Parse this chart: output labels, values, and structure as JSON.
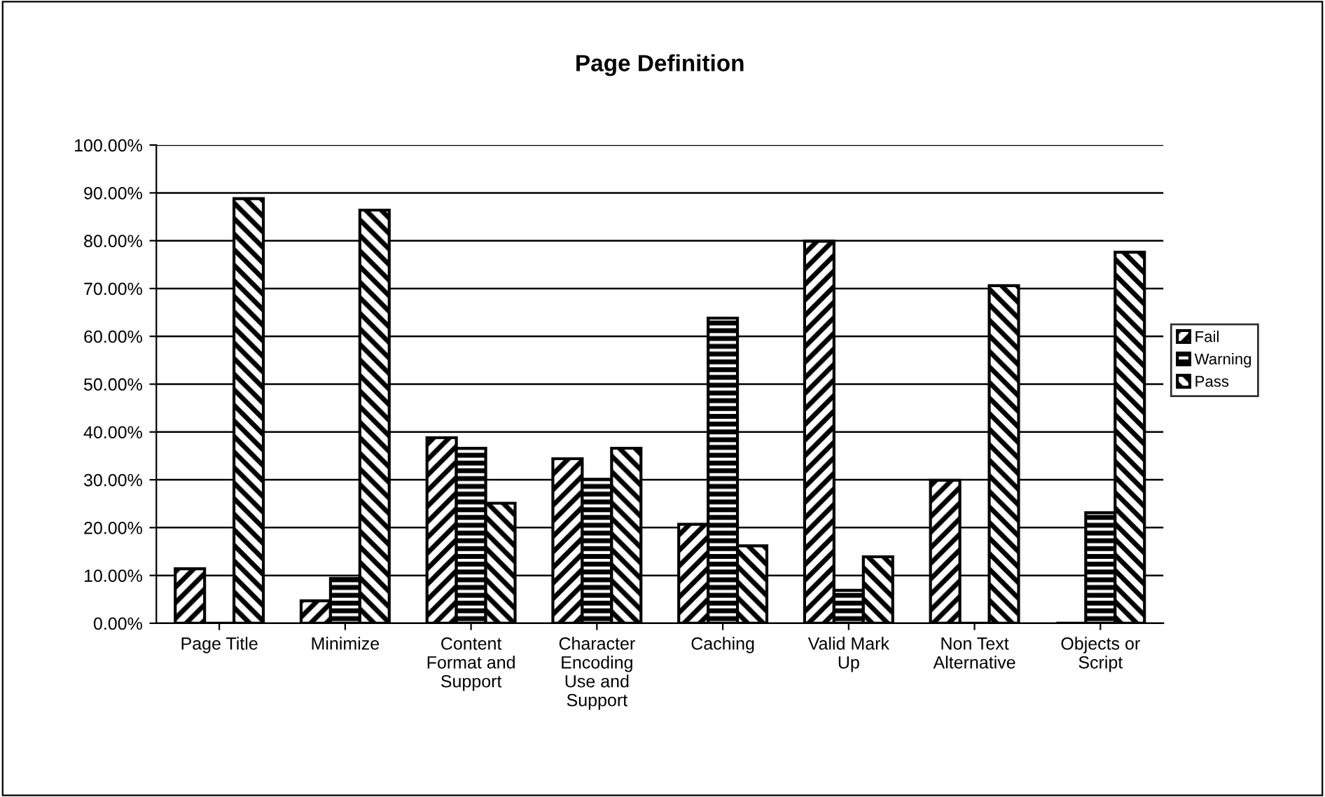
{
  "chart_data": {
    "type": "bar",
    "title": "Page Definition",
    "categories": [
      "Page Title",
      "Minimize",
      "Content\nFormat and\nSupport",
      "Character\nEncoding\nUse and\nSupport",
      "Caching",
      "Valid Mark\nUp",
      "Non Text\nAlternative",
      "Objects or\nScript"
    ],
    "series": [
      {
        "name": "Fail",
        "color": "#000000",
        "values": [
          11.4,
          4.7,
          38.8,
          34.4,
          20.7,
          79.9,
          29.9,
          0
        ]
      },
      {
        "name": "Warning",
        "color": "#000000",
        "values": [
          0,
          9.4,
          36.6,
          30.1,
          63.8,
          6.9,
          0,
          23.1
        ]
      },
      {
        "name": "Pass",
        "color": "#000000",
        "values": [
          88.8,
          86.4,
          25.1,
          36.6,
          16.2,
          13.9,
          70.6,
          77.6
        ]
      }
    ],
    "ylim": [
      0,
      100
    ],
    "yticks": [
      {
        "value": 0,
        "label": "0.00%"
      },
      {
        "value": 10,
        "label": "10.00%"
      },
      {
        "value": 20,
        "label": "20.00%"
      },
      {
        "value": 30,
        "label": "30.00%"
      },
      {
        "value": 40,
        "label": "40.00%"
      },
      {
        "value": 50,
        "label": "50.00%"
      },
      {
        "value": 60,
        "label": "60.00%"
      },
      {
        "value": 70,
        "label": "70.00%"
      },
      {
        "value": 80,
        "label": "80.00%"
      },
      {
        "value": 90,
        "label": "90.00%"
      },
      {
        "value": 100,
        "label": "100.00%"
      }
    ],
    "grid": "y",
    "legend": "right"
  }
}
